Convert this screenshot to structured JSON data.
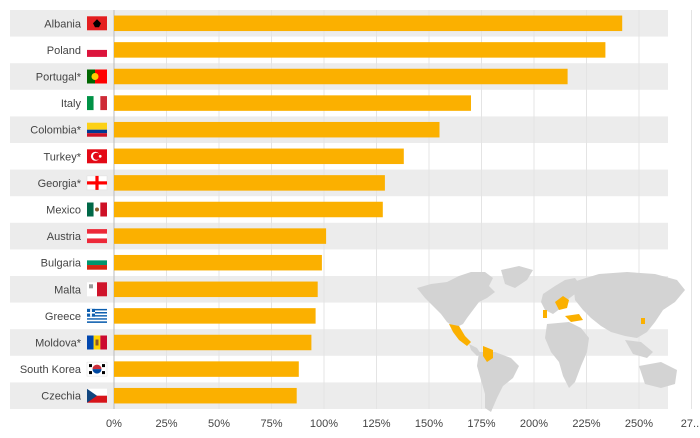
{
  "chart_data": {
    "type": "bar",
    "orientation": "horizontal",
    "categories": [
      "Albania",
      "Poland",
      "Portugal*",
      "Italy",
      "Colombia*",
      "Turkey*",
      "Georgia*",
      "Mexico",
      "Austria",
      "Bulgaria",
      "Malta",
      "Greece",
      "Moldova*",
      "South Korea",
      "Czechia"
    ],
    "values": [
      242,
      234,
      216,
      170,
      155,
      138,
      129,
      128,
      101,
      99,
      97,
      96,
      94,
      88,
      87
    ],
    "x_ticks": [
      "0%",
      "25%",
      "50%",
      "75%",
      "100%",
      "125%",
      "150%",
      "175%",
      "200%",
      "225%",
      "250%",
      "27..."
    ],
    "xlim": [
      0,
      275
    ],
    "value_format": "percent",
    "grid": "vertical",
    "legend": "none",
    "flags": [
      "albania-flag",
      "poland-flag",
      "portugal-flag",
      "italy-flag",
      "colombia-flag",
      "turkey-flag",
      "georgia-flag",
      "mexico-flag",
      "austria-flag",
      "bulgaria-flag",
      "malta-flag",
      "greece-flag",
      "moldova-flag",
      "south-korea-flag",
      "czechia-flag"
    ],
    "inset": "world-map-highlighting-countries",
    "colors": {
      "bar": "#FBB000",
      "grid": "#e4e4e4",
      "stripe": "#ececec",
      "text": "#444444",
      "map_land": "#d3d3d3",
      "map_highlight": "#FBB000"
    }
  }
}
